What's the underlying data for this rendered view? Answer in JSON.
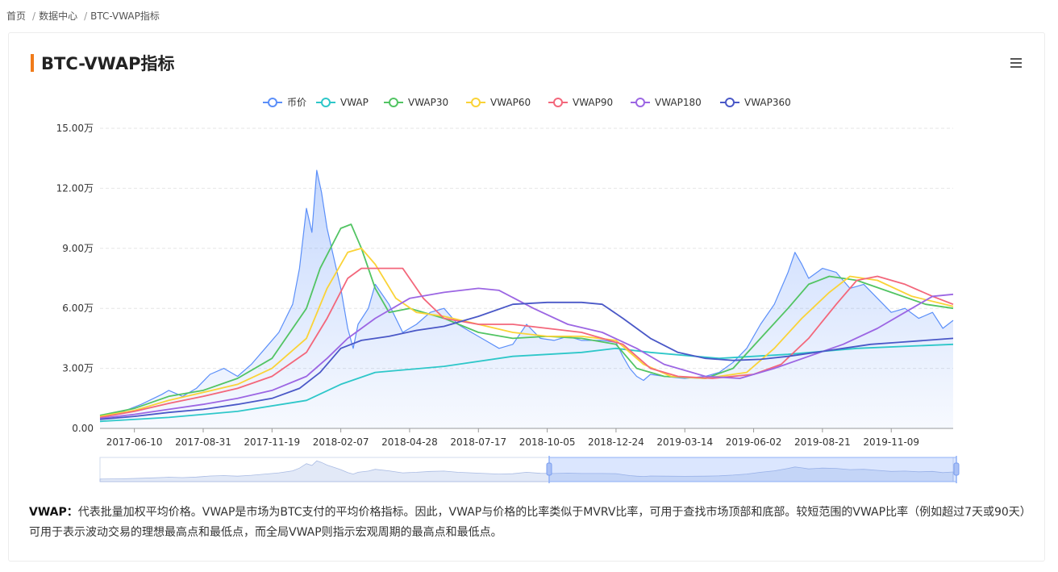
{
  "breadcrumb": {
    "home": "首页",
    "section": "数据中心",
    "current": "BTC-VWAP指标"
  },
  "page_title": "BTC-VWAP指标",
  "description": {
    "term": "VWAP",
    "colon": "：",
    "text": "代表批量加权平均价格。VWAP是市场为BTC支付的平均价格指标。因此，VWAP与价格的比率类似于MVRV比率，可用于查找市场顶部和底部。较短范围的VWAP比率（例如超过7天或90天）可用于表示波动交易的理想最高点和最低点，而全局VWAP则指示宏观周期的最高点和最低点。"
  },
  "chart_data": {
    "type": "line",
    "title": "",
    "xlabel": "",
    "ylabel": "",
    "x_ticks": [
      "2017-06-10",
      "2017-08-31",
      "2017-11-19",
      "2018-02-07",
      "2018-04-28",
      "2018-07-17",
      "2018-10-05",
      "2018-12-24",
      "2019-03-14",
      "2019-06-02",
      "2019-08-21",
      "2019-11-09"
    ],
    "y_ticks": [
      "0.00",
      "3.00万",
      "6.00万",
      "9.00万",
      "12.00万",
      "15.00万"
    ],
    "ylim": [
      0,
      150000
    ],
    "x_domain": [
      0,
      12.4
    ],
    "grid": "horizontal dashed",
    "legend_position": "top-center",
    "series": [
      {
        "name": "币价",
        "color": "#5b8ff9",
        "area": true,
        "points": [
          [
            0,
            6500
          ],
          [
            0.3,
            8000
          ],
          [
            0.6,
            12000
          ],
          [
            0.9,
            17000
          ],
          [
            1.0,
            19000
          ],
          [
            1.2,
            16000
          ],
          [
            1.4,
            20000
          ],
          [
            1.6,
            27000
          ],
          [
            1.8,
            30000
          ],
          [
            2.0,
            26000
          ],
          [
            2.2,
            32000
          ],
          [
            2.4,
            40000
          ],
          [
            2.6,
            48000
          ],
          [
            2.8,
            62000
          ],
          [
            2.9,
            80000
          ],
          [
            3.0,
            110000
          ],
          [
            3.08,
            98000
          ],
          [
            3.15,
            129000
          ],
          [
            3.22,
            118000
          ],
          [
            3.3,
            100000
          ],
          [
            3.4,
            85000
          ],
          [
            3.5,
            70000
          ],
          [
            3.6,
            50000
          ],
          [
            3.68,
            40000
          ],
          [
            3.75,
            52000
          ],
          [
            3.9,
            60000
          ],
          [
            4.0,
            72000
          ],
          [
            4.2,
            62000
          ],
          [
            4.4,
            48000
          ],
          [
            4.6,
            52000
          ],
          [
            4.8,
            58000
          ],
          [
            5.0,
            60000
          ],
          [
            5.2,
            52000
          ],
          [
            5.4,
            48000
          ],
          [
            5.6,
            44000
          ],
          [
            5.8,
            40000
          ],
          [
            6.0,
            42000
          ],
          [
            6.2,
            52000
          ],
          [
            6.4,
            45000
          ],
          [
            6.6,
            44000
          ],
          [
            6.8,
            46000
          ],
          [
            7.0,
            44000
          ],
          [
            7.3,
            44000
          ],
          [
            7.5,
            43000
          ],
          [
            7.6,
            36000
          ],
          [
            7.7,
            30000
          ],
          [
            7.8,
            26000
          ],
          [
            7.9,
            24000
          ],
          [
            8.0,
            27000
          ],
          [
            8.2,
            26000
          ],
          [
            8.5,
            25000
          ],
          [
            8.8,
            26000
          ],
          [
            9.0,
            28000
          ],
          [
            9.2,
            33000
          ],
          [
            9.4,
            40000
          ],
          [
            9.6,
            52000
          ],
          [
            9.8,
            62000
          ],
          [
            10.0,
            78000
          ],
          [
            10.1,
            88000
          ],
          [
            10.2,
            82000
          ],
          [
            10.3,
            75000
          ],
          [
            10.5,
            80000
          ],
          [
            10.7,
            78000
          ],
          [
            10.9,
            70000
          ],
          [
            11.1,
            72000
          ],
          [
            11.3,
            65000
          ],
          [
            11.5,
            58000
          ],
          [
            11.7,
            60000
          ],
          [
            11.9,
            55000
          ],
          [
            12.1,
            58000
          ],
          [
            12.25,
            50000
          ],
          [
            12.4,
            54000
          ]
        ]
      },
      {
        "name": "VWAP",
        "color": "#2ec7c9",
        "points": [
          [
            0,
            3500
          ],
          [
            1,
            5500
          ],
          [
            2,
            8500
          ],
          [
            3,
            14000
          ],
          [
            3.5,
            22000
          ],
          [
            4,
            28000
          ],
          [
            5,
            31000
          ],
          [
            6,
            36000
          ],
          [
            7,
            38000
          ],
          [
            7.5,
            40000
          ],
          [
            8,
            38000
          ],
          [
            9,
            35000
          ],
          [
            10,
            37000
          ],
          [
            11,
            40000
          ],
          [
            12.4,
            42000
          ]
        ]
      },
      {
        "name": "VWAP30",
        "color": "#52c463",
        "points": [
          [
            0,
            6500
          ],
          [
            0.5,
            10000
          ],
          [
            1,
            16000
          ],
          [
            1.5,
            19000
          ],
          [
            2,
            25000
          ],
          [
            2.5,
            35000
          ],
          [
            3,
            60000
          ],
          [
            3.2,
            80000
          ],
          [
            3.5,
            100000
          ],
          [
            3.65,
            102000
          ],
          [
            3.8,
            90000
          ],
          [
            4,
            70000
          ],
          [
            4.2,
            58000
          ],
          [
            4.5,
            60000
          ],
          [
            5,
            55000
          ],
          [
            5.5,
            48000
          ],
          [
            6,
            45000
          ],
          [
            6.5,
            46000
          ],
          [
            7,
            45000
          ],
          [
            7.5,
            42000
          ],
          [
            7.8,
            30000
          ],
          [
            8.2,
            26000
          ],
          [
            8.8,
            25000
          ],
          [
            9.2,
            30000
          ],
          [
            9.6,
            45000
          ],
          [
            10,
            60000
          ],
          [
            10.3,
            72000
          ],
          [
            10.6,
            76000
          ],
          [
            11,
            74000
          ],
          [
            11.5,
            68000
          ],
          [
            12,
            62000
          ],
          [
            12.4,
            60000
          ]
        ]
      },
      {
        "name": "VWAP60",
        "color": "#fad337",
        "points": [
          [
            0,
            6000
          ],
          [
            0.5,
            9000
          ],
          [
            1,
            14000
          ],
          [
            1.5,
            18000
          ],
          [
            2,
            22000
          ],
          [
            2.5,
            30000
          ],
          [
            3,
            45000
          ],
          [
            3.3,
            70000
          ],
          [
            3.6,
            88000
          ],
          [
            3.8,
            90000
          ],
          [
            4.0,
            82000
          ],
          [
            4.3,
            65000
          ],
          [
            4.6,
            58000
          ],
          [
            5,
            56000
          ],
          [
            5.5,
            52000
          ],
          [
            6,
            48000
          ],
          [
            6.5,
            46000
          ],
          [
            7,
            46000
          ],
          [
            7.5,
            44000
          ],
          [
            7.9,
            32000
          ],
          [
            8.3,
            26000
          ],
          [
            8.8,
            25000
          ],
          [
            9.4,
            28000
          ],
          [
            9.8,
            40000
          ],
          [
            10.2,
            55000
          ],
          [
            10.6,
            68000
          ],
          [
            10.9,
            76000
          ],
          [
            11.3,
            74000
          ],
          [
            11.8,
            66000
          ],
          [
            12.4,
            61000
          ]
        ]
      },
      {
        "name": "VWAP90",
        "color": "#f3677b",
        "points": [
          [
            0,
            5500
          ],
          [
            0.5,
            8500
          ],
          [
            1,
            12500
          ],
          [
            1.5,
            16000
          ],
          [
            2,
            20000
          ],
          [
            2.5,
            26000
          ],
          [
            3,
            38000
          ],
          [
            3.3,
            55000
          ],
          [
            3.6,
            75000
          ],
          [
            3.8,
            80000
          ],
          [
            4.2,
            80000
          ],
          [
            4.4,
            80000
          ],
          [
            4.7,
            65000
          ],
          [
            5,
            55000
          ],
          [
            5.5,
            52000
          ],
          [
            6,
            52000
          ],
          [
            6.5,
            50000
          ],
          [
            7,
            48000
          ],
          [
            7.6,
            42000
          ],
          [
            8,
            30000
          ],
          [
            8.4,
            26000
          ],
          [
            8.9,
            25000
          ],
          [
            9.5,
            27000
          ],
          [
            9.9,
            32000
          ],
          [
            10.3,
            45000
          ],
          [
            10.7,
            62000
          ],
          [
            11.0,
            74000
          ],
          [
            11.3,
            76000
          ],
          [
            11.7,
            72000
          ],
          [
            12.1,
            66000
          ],
          [
            12.4,
            62000
          ]
        ]
      },
      {
        "name": "VWAP180",
        "color": "#9c66e3",
        "points": [
          [
            0,
            5000
          ],
          [
            0.5,
            7000
          ],
          [
            1,
            9500
          ],
          [
            1.5,
            12000
          ],
          [
            2,
            15000
          ],
          [
            2.5,
            19000
          ],
          [
            3,
            26000
          ],
          [
            3.3,
            35000
          ],
          [
            3.6,
            45000
          ],
          [
            4,
            55000
          ],
          [
            4.5,
            65000
          ],
          [
            5,
            68000
          ],
          [
            5.5,
            70000
          ],
          [
            5.8,
            69000
          ],
          [
            6.3,
            60000
          ],
          [
            6.8,
            52000
          ],
          [
            7.3,
            48000
          ],
          [
            7.8,
            40000
          ],
          [
            8.2,
            32000
          ],
          [
            8.8,
            26000
          ],
          [
            9.3,
            25000
          ],
          [
            9.8,
            30000
          ],
          [
            10.3,
            36000
          ],
          [
            10.8,
            42000
          ],
          [
            11.3,
            50000
          ],
          [
            11.8,
            60000
          ],
          [
            12.1,
            66000
          ],
          [
            12.4,
            67000
          ]
        ]
      },
      {
        "name": "VWAP360",
        "color": "#4a58c7",
        "points": [
          [
            0,
            4500
          ],
          [
            0.5,
            6000
          ],
          [
            1,
            8000
          ],
          [
            1.5,
            9500
          ],
          [
            2,
            12000
          ],
          [
            2.5,
            15000
          ],
          [
            2.9,
            20000
          ],
          [
            3.2,
            28000
          ],
          [
            3.5,
            40000
          ],
          [
            3.8,
            44000
          ],
          [
            4.2,
            46000
          ],
          [
            4.6,
            49000
          ],
          [
            5,
            51000
          ],
          [
            5.5,
            56000
          ],
          [
            6,
            62000
          ],
          [
            6.5,
            63000
          ],
          [
            7,
            63000
          ],
          [
            7.3,
            62000
          ],
          [
            7.6,
            55000
          ],
          [
            8,
            45000
          ],
          [
            8.4,
            38000
          ],
          [
            8.8,
            35000
          ],
          [
            9.2,
            34000
          ],
          [
            9.6,
            34500
          ],
          [
            10,
            36000
          ],
          [
            10.4,
            38000
          ],
          [
            10.8,
            40000
          ],
          [
            11.2,
            42000
          ],
          [
            11.6,
            43000
          ],
          [
            12,
            44000
          ],
          [
            12.4,
            45000
          ]
        ]
      }
    ]
  }
}
